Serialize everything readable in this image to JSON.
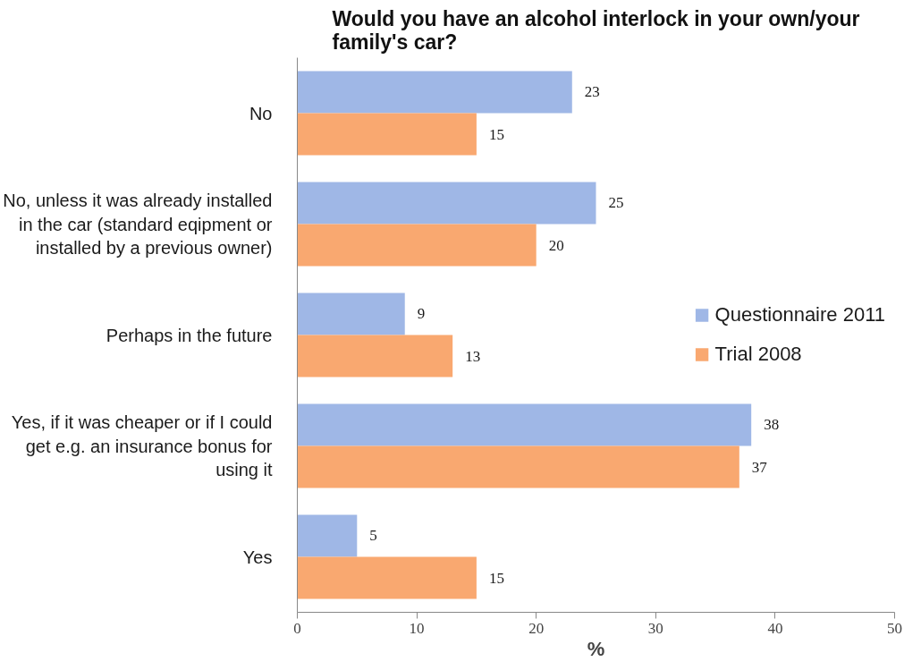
{
  "chart_data": {
    "type": "bar",
    "orientation": "horizontal",
    "title": "Would you have an alcohol interlock in your own/your family's car?",
    "xlabel": "%",
    "categories": [
      "No",
      "No, unless it was already installed in the car (standard eqipment or installed by a previous owner)",
      "Perhaps in the future",
      "Yes, if it was cheaper or if I could get e.g. an insurance bonus for using it",
      "Yes"
    ],
    "series": [
      {
        "name": "Questionnaire 2011",
        "color": "#9fb7e6",
        "values": [
          23,
          25,
          9,
          38,
          5
        ]
      },
      {
        "name": "Trial 2008",
        "color": "#f9a870",
        "values": [
          15,
          20,
          13,
          37,
          15
        ]
      }
    ],
    "xlim": [
      0,
      50
    ],
    "xticks": [
      0,
      10,
      20,
      30,
      40,
      50
    ],
    "data_labels": true,
    "legend": "right",
    "grid": false
  }
}
